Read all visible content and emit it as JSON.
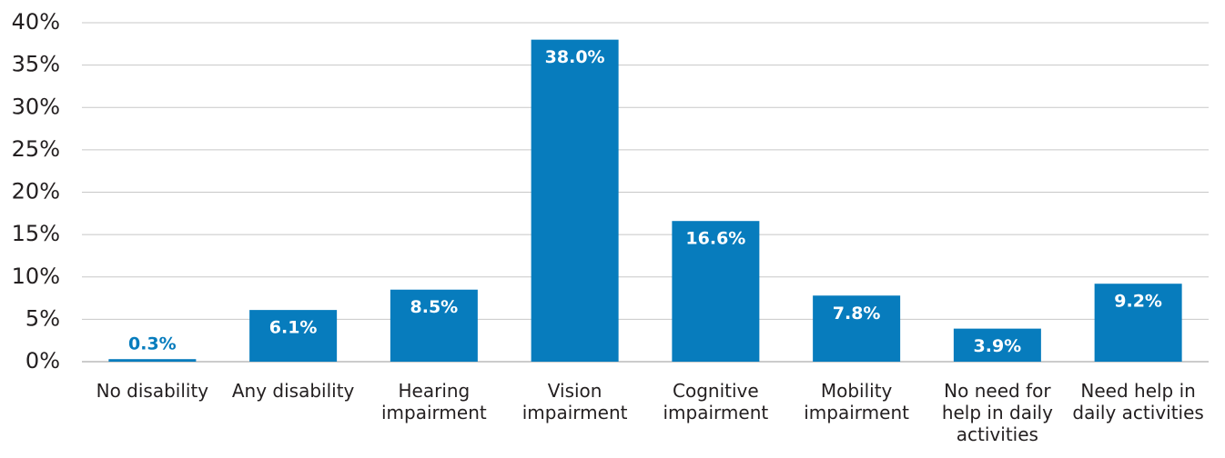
{
  "chart_data": {
    "type": "bar",
    "categories": [
      "No disability",
      "Any disability",
      "Hearing impairment",
      "Vision impairment",
      "Cognitive impairment",
      "Mobility impairment",
      "No need for help in daily activities",
      "Need help in daily activities"
    ],
    "values": [
      0.3,
      6.1,
      8.5,
      38.0,
      16.6,
      7.8,
      3.9,
      9.2
    ],
    "value_labels": [
      "0.3%",
      "6.1%",
      "8.5%",
      "38.0%",
      "16.6%",
      "7.8%",
      "3.9%",
      "9.2%"
    ],
    "color": "#077cbd",
    "ylim": [
      0,
      40
    ],
    "yticks": [
      {
        "value": 0,
        "label": "0%"
      },
      {
        "value": 5,
        "label": "5%"
      },
      {
        "value": 10,
        "label": "10%"
      },
      {
        "value": 15,
        "label": "15%"
      },
      {
        "value": 20,
        "label": "20%"
      },
      {
        "value": 25,
        "label": "25%"
      },
      {
        "value": 30,
        "label": "30%"
      },
      {
        "value": 35,
        "label": "35%"
      },
      {
        "value": 40,
        "label": "40%"
      }
    ],
    "grid": true
  }
}
